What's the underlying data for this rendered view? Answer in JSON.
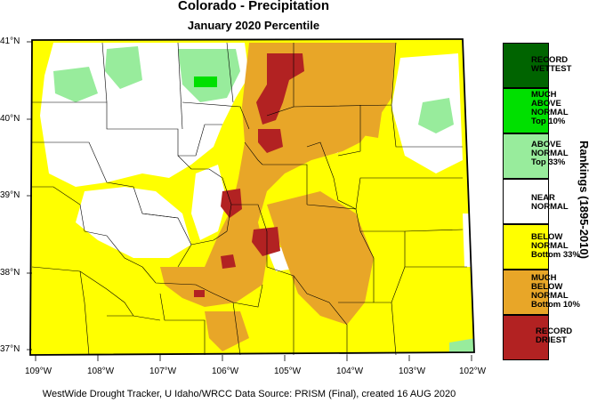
{
  "header": {
    "title": "Colorado - Precipitation",
    "subtitle": "January 2020 Percentile"
  },
  "footer": {
    "credit": "WestWide Drought Tracker, U Idaho/WRCC Data Source: PRISM (Final), created 16 AUG 2020"
  },
  "map": {
    "lat_ticks": [
      "41°N",
      "40°N",
      "39°N",
      "38°N",
      "37°N"
    ],
    "lon_ticks": [
      "109°W",
      "108°W",
      "107°W",
      "106°W",
      "105°W",
      "104°W",
      "103°W",
      "102°W"
    ]
  },
  "legend": {
    "axis_title": "Rankings (1895-2010)",
    "categories": [
      {
        "label": "RECORD WETTEST",
        "lines": [
          "RECORD",
          "WETTEST"
        ],
        "color": "#006400"
      },
      {
        "label": "MUCH ABOVE NORMAL Top 10%",
        "lines": [
          "MUCH",
          "ABOVE",
          "NORMAL",
          "Top 10%"
        ],
        "color": "#00e000"
      },
      {
        "label": "ABOVE NORMAL Top 33%",
        "lines": [
          "ABOVE",
          "NORMAL",
          "Top 33%"
        ],
        "color": "#98ec9c"
      },
      {
        "label": "NEAR NORMAL",
        "lines": [
          "NEAR",
          "NORMAL"
        ],
        "color": "#ffffff"
      },
      {
        "label": "BELOW NORMAL Bottom 33%",
        "lines": [
          "BELOW",
          "NORMAL",
          "Bottom 33%"
        ],
        "color": "#ffff00"
      },
      {
        "label": "MUCH BELOW NORMAL Bottom 10%",
        "lines": [
          "MUCH",
          "BELOW",
          "NORMAL",
          "Bottom 10%"
        ],
        "color": "#e8a628"
      },
      {
        "label": "RECORD DRIEST",
        "lines": [
          "RECORD",
          "DRIEST"
        ],
        "color": "#b22222"
      }
    ]
  }
}
